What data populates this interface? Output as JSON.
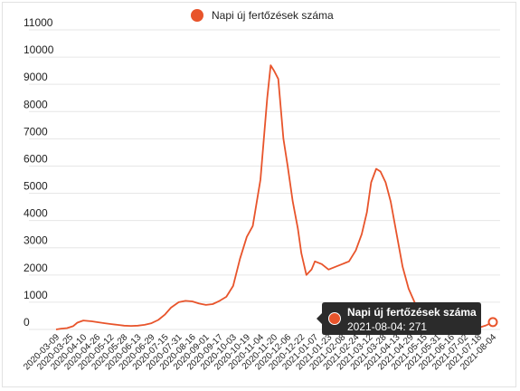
{
  "legend": {
    "label": "Napi új fertőzések száma",
    "color": "#e8542b"
  },
  "tooltip": {
    "series": "Napi új fertőzések száma",
    "value_text": "2021-08-04: 271"
  },
  "chart_data": {
    "type": "line",
    "title": "",
    "xlabel": "",
    "ylabel": "",
    "ylim": [
      0,
      11000
    ],
    "yticks": [
      11000,
      10000,
      9000,
      8000,
      7000,
      6000,
      5000,
      4000,
      3000,
      2000,
      1000,
      0
    ],
    "grid": "horizontal",
    "legend_position": "top",
    "x_start": "2020-03-09",
    "x_end": "2021-08-04",
    "x_ticks": [
      "2020-03-09",
      "2020-03-25",
      "2020-04-10",
      "2020-04-26",
      "2020-05-12",
      "2020-05-28",
      "2020-06-13",
      "2020-06-29",
      "2020-07-15",
      "2020-07-31",
      "2020-08-16",
      "2020-09-01",
      "2020-09-17",
      "2020-10-03",
      "2020-10-19",
      "2020-11-04",
      "2020-11-20",
      "2020-12-06",
      "2020-12-22",
      "2021-01-07",
      "2021-01-23",
      "2021-02-08",
      "2021-02-24",
      "2021-03-12",
      "2021-03-28",
      "2021-04-13",
      "2021-04-29",
      "2021-05-15",
      "2021-05-31",
      "2021-06-16",
      "2021-07-02",
      "2021-07-18",
      "2021-08-04"
    ],
    "series": [
      {
        "name": "Napi új fertőzések száma",
        "color": "#e8542b",
        "points": [
          [
            "2020-03-09",
            0
          ],
          [
            "2020-03-15",
            30
          ],
          [
            "2020-03-22",
            50
          ],
          [
            "2020-03-29",
            120
          ],
          [
            "2020-04-03",
            250
          ],
          [
            "2020-04-10",
            330
          ],
          [
            "2020-04-20",
            300
          ],
          [
            "2020-04-26",
            270
          ],
          [
            "2020-05-05",
            230
          ],
          [
            "2020-05-12",
            200
          ],
          [
            "2020-05-20",
            170
          ],
          [
            "2020-05-28",
            140
          ],
          [
            "2020-06-05",
            130
          ],
          [
            "2020-06-13",
            140
          ],
          [
            "2020-06-21",
            170
          ],
          [
            "2020-06-29",
            230
          ],
          [
            "2020-07-07",
            350
          ],
          [
            "2020-07-15",
            550
          ],
          [
            "2020-07-22",
            800
          ],
          [
            "2020-07-31",
            1000
          ],
          [
            "2020-08-08",
            1050
          ],
          [
            "2020-08-16",
            1030
          ],
          [
            "2020-08-24",
            950
          ],
          [
            "2020-09-01",
            900
          ],
          [
            "2020-09-09",
            930
          ],
          [
            "2020-09-17",
            1050
          ],
          [
            "2020-09-25",
            1200
          ],
          [
            "2020-10-03",
            1600
          ],
          [
            "2020-10-11",
            2600
          ],
          [
            "2020-10-19",
            3400
          ],
          [
            "2020-10-26",
            3800
          ],
          [
            "2020-11-04",
            5500
          ],
          [
            "2020-11-12",
            8500
          ],
          [
            "2020-11-16",
            9700
          ],
          [
            "2020-11-20",
            9500
          ],
          [
            "2020-11-25",
            9200
          ],
          [
            "2020-12-01",
            7000
          ],
          [
            "2020-12-06",
            6000
          ],
          [
            "2020-12-12",
            4700
          ],
          [
            "2020-12-18",
            3700
          ],
          [
            "2020-12-22",
            2800
          ],
          [
            "2020-12-28",
            2000
          ],
          [
            "2021-01-03",
            2200
          ],
          [
            "2021-01-07",
            2500
          ],
          [
            "2021-01-15",
            2400
          ],
          [
            "2021-01-23",
            2200
          ],
          [
            "2021-01-31",
            2300
          ],
          [
            "2021-02-08",
            2400
          ],
          [
            "2021-02-16",
            2500
          ],
          [
            "2021-02-24",
            2900
          ],
          [
            "2021-03-03",
            3500
          ],
          [
            "2021-03-09",
            4300
          ],
          [
            "2021-03-14",
            5400
          ],
          [
            "2021-03-20",
            5900
          ],
          [
            "2021-03-25",
            5800
          ],
          [
            "2021-03-31",
            5400
          ],
          [
            "2021-04-06",
            4700
          ],
          [
            "2021-04-13",
            3500
          ],
          [
            "2021-04-20",
            2300
          ],
          [
            "2021-04-27",
            1500
          ],
          [
            "2021-05-04",
            1000
          ],
          [
            "2021-05-11",
            650
          ],
          [
            "2021-05-18",
            400
          ],
          [
            "2021-05-25",
            250
          ],
          [
            "2021-06-01",
            150
          ],
          [
            "2021-06-10",
            90
          ],
          [
            "2021-06-20",
            50
          ],
          [
            "2021-07-01",
            40
          ],
          [
            "2021-07-10",
            50
          ],
          [
            "2021-07-20",
            80
          ],
          [
            "2021-07-27",
            150
          ],
          [
            "2021-08-04",
            271
          ]
        ]
      }
    ]
  }
}
